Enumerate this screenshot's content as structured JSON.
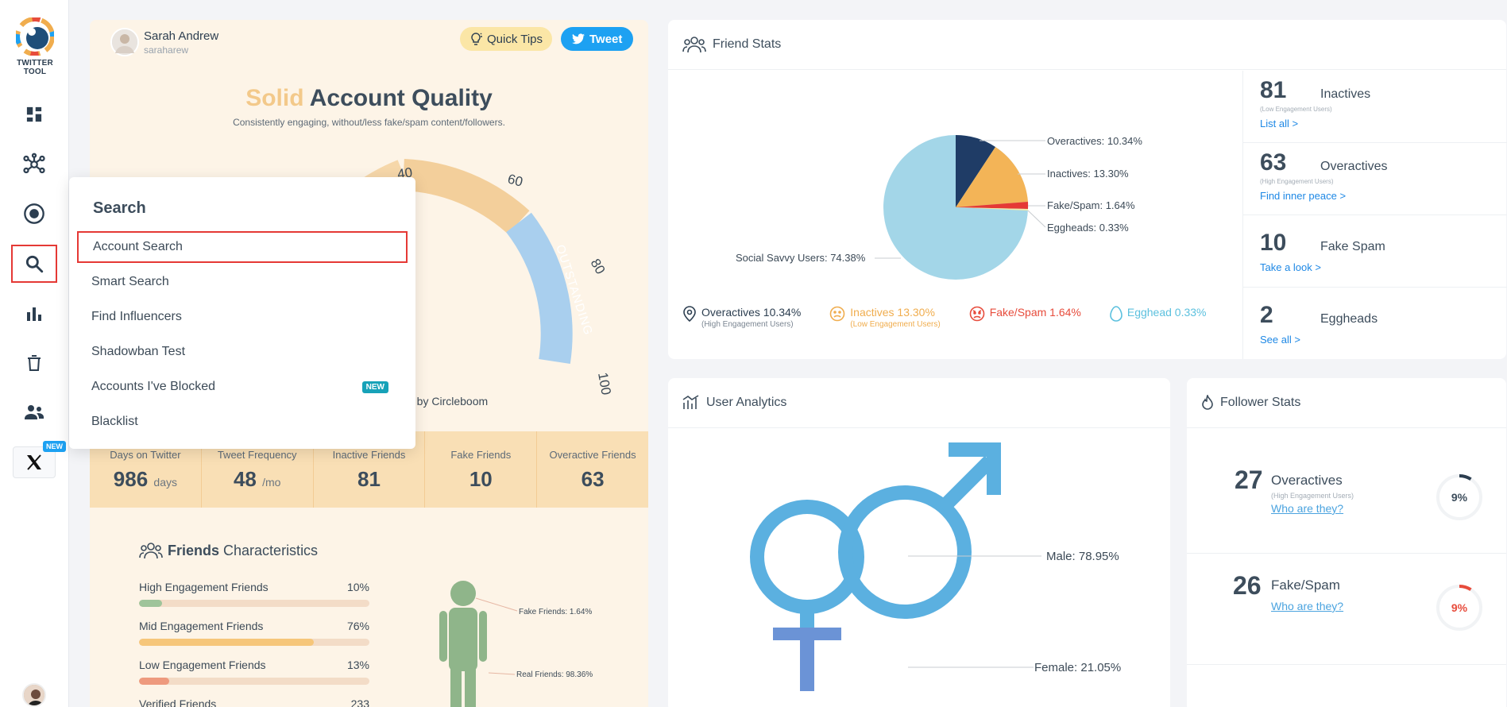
{
  "app": {
    "logo_text": "TWITTER TOOL"
  },
  "sidebar": {
    "items": [
      {
        "icon": "dashboard-icon"
      },
      {
        "icon": "network-icon"
      },
      {
        "icon": "target-icon"
      },
      {
        "icon": "search-icon",
        "active": true
      },
      {
        "icon": "bar-chart-icon"
      },
      {
        "icon": "trash-icon"
      },
      {
        "icon": "users-icon"
      }
    ],
    "x_badge": "NEW"
  },
  "user": {
    "name": "Sarah Andrew",
    "handle": "saraharew"
  },
  "header_buttons": {
    "quick_tips": "Quick Tips",
    "tweet": "Tweet"
  },
  "quality": {
    "title_accent": "Solid",
    "title_rest": "Account Quality",
    "subtitle": "Consistently engaging, without/less fake/spam content/followers.",
    "gauge_ticks": [
      "40",
      "60",
      "80",
      "100"
    ],
    "gauge_band": "OUTSTANDING",
    "powered_by": "d by Circleboom"
  },
  "stats": [
    {
      "label": "Days on Twitter",
      "value": "986",
      "unit": "days"
    },
    {
      "label": "Tweet Frequency",
      "value": "48",
      "unit": "/mo"
    },
    {
      "label": "Inactive Friends",
      "value": "81",
      "unit": ""
    },
    {
      "label": "Fake Friends",
      "value": "10",
      "unit": ""
    },
    {
      "label": "Overactive Friends",
      "value": "63",
      "unit": ""
    }
  ],
  "friends_characteristics": {
    "title_bold": "Friends",
    "title_rest": "Characteristics",
    "bars": [
      {
        "label": "High Engagement Friends",
        "value": "10%",
        "pct": 10,
        "color": "#9fc49a"
      },
      {
        "label": "Mid Engagement Friends",
        "value": "76%",
        "pct": 76,
        "color": "#f6c67a"
      },
      {
        "label": "Low Engagement Friends",
        "value": "13%",
        "pct": 13,
        "color": "#ee9a7e"
      },
      {
        "label": "Verified Friends",
        "value": "233",
        "pct": 0,
        "color": "#9fc49a"
      }
    ],
    "person_labels": {
      "fake": "Fake Friends: 1.64%",
      "real": "Real Friends: 98.36%"
    }
  },
  "search_menu": {
    "title": "Search",
    "items": [
      {
        "label": "Account Search",
        "selected": true
      },
      {
        "label": "Smart Search"
      },
      {
        "label": "Find Influencers"
      },
      {
        "label": "Shadowban Test"
      },
      {
        "label": "Accounts I've Blocked",
        "badge": "NEW"
      },
      {
        "label": "Blacklist"
      }
    ]
  },
  "friend_stats": {
    "title": "Friend Stats",
    "pie_labels": {
      "overactives": "Overactives: 10.34%",
      "inactives": "Inactives: 13.30%",
      "fake": "Fake/Spam: 1.64%",
      "eggheads": "Eggheads: 0.33%",
      "savvy": "Social Savvy Users: 74.38%"
    },
    "legend": [
      {
        "label": "Overactives 10.34%",
        "sub": "(High Engagement Users)",
        "color": "#2c3e50"
      },
      {
        "label": "Inactives 13.30%",
        "sub": "(Low Engagement Users)",
        "color": "#f0ad4e"
      },
      {
        "label": "Fake/Spam 1.64%",
        "sub": "",
        "color": "#e74c3c"
      },
      {
        "label": "Egghead 0.33%",
        "sub": "",
        "color": "#5bc0de"
      }
    ],
    "side": [
      {
        "num": "81",
        "label": "Inactives",
        "sub": "(Low Engagement Users)",
        "link": "List all >"
      },
      {
        "num": "63",
        "label": "Overactives",
        "sub": "(High Engagement Users)",
        "link": "Find inner peace >"
      },
      {
        "num": "10",
        "label": "Fake Spam",
        "sub": "",
        "link": "Take a look >"
      },
      {
        "num": "2",
        "label": "Eggheads",
        "sub": "",
        "link": "See all >"
      }
    ]
  },
  "user_analytics": {
    "title": "User Analytics",
    "male": "Male: 78.95%",
    "female": "Female: 21.05%"
  },
  "follower_stats": {
    "title": "Follower Stats",
    "items": [
      {
        "num": "27",
        "label": "Overactives",
        "sub": "(High Engagement Users)",
        "link": "Who are they?",
        "pct": "9%",
        "pct_value": 9,
        "color": "#2c3e50"
      },
      {
        "num": "26",
        "label": "Fake/Spam",
        "sub": "",
        "link": "Who are they?",
        "pct": "9%",
        "pct_value": 9,
        "color": "#e74c3c"
      }
    ]
  }
}
